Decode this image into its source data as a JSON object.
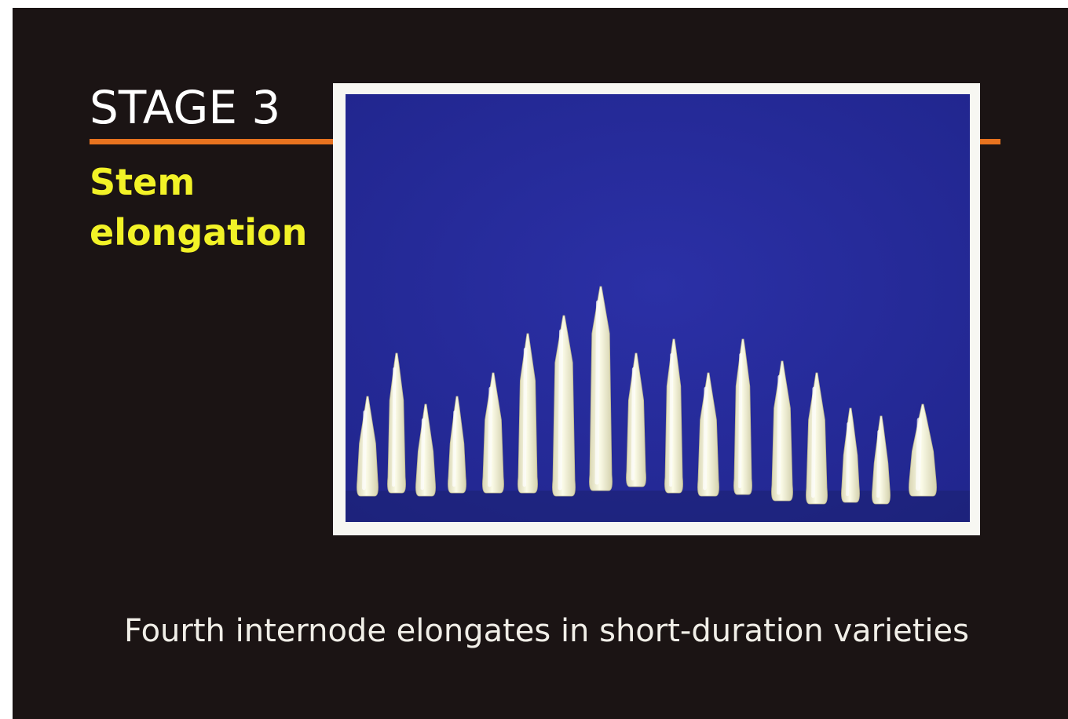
{
  "slide": {
    "title": "STAGE 3",
    "subtitle_line1": "Stem",
    "subtitle_line2": "elongation",
    "caption": "Fourth internode elongates in short-duration varieties"
  },
  "photo": {
    "subject": "rice-stem-samples",
    "stem_count": 17
  },
  "colors": {
    "background": "#1b1414",
    "accent_rule": "#e8731f",
    "subtitle": "#f2f227",
    "photo_background": "#25299a",
    "frame": "#f7f7f2"
  }
}
